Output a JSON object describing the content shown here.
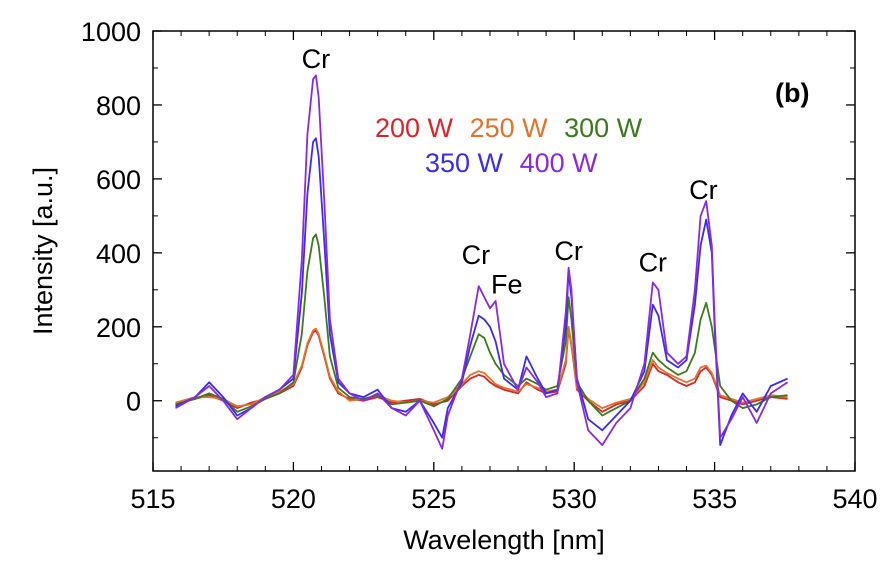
{
  "chart_data": {
    "type": "line",
    "panel_label": "(b)",
    "xlabel": "Wavelength [nm]",
    "ylabel": "Intensity [a.u.]",
    "xlim": [
      515,
      540
    ],
    "ylim": [
      -190,
      1000
    ],
    "xticks": [
      515,
      520,
      525,
      530,
      535,
      540
    ],
    "yticks": [
      0,
      200,
      400,
      600,
      800,
      1000
    ],
    "grid": false,
    "legend_lines": [
      [
        {
          "text": "200 W",
          "color": "#d9262b"
        },
        {
          "text": "250 W",
          "color": "#e0742a"
        },
        {
          "text": "300 W",
          "color": "#3c7a1e"
        }
      ],
      [
        {
          "text": "350 W",
          "color": "#3a2cf0"
        },
        {
          "text": "400 W",
          "color": "#8a2ae0"
        }
      ]
    ],
    "annotations": [
      {
        "text": "Cr",
        "x": 520.8,
        "y": 900
      },
      {
        "text": "Cr",
        "x": 526.5,
        "y": 370
      },
      {
        "text": "Fe",
        "x": 527.6,
        "y": 290
      },
      {
        "text": "Cr",
        "x": 529.8,
        "y": 380
      },
      {
        "text": "Cr",
        "x": 532.8,
        "y": 350
      },
      {
        "text": "Cr",
        "x": 534.6,
        "y": 545
      }
    ],
    "series": [
      {
        "name": "200 W",
        "color": "#d9262b",
        "x": [
          515.8,
          516.5,
          517.0,
          517.5,
          518.0,
          518.5,
          519.0,
          519.5,
          520.0,
          520.3,
          520.5,
          520.7,
          520.8,
          520.9,
          521.1,
          521.3,
          521.6,
          522.0,
          522.5,
          523.0,
          523.5,
          524.0,
          524.5,
          525.0,
          525.5,
          526.0,
          526.3,
          526.6,
          526.8,
          527.0,
          527.2,
          527.5,
          528.0,
          528.3,
          528.7,
          529.0,
          529.4,
          529.7,
          529.8,
          529.9,
          530.1,
          530.5,
          531.0,
          531.5,
          532.0,
          532.5,
          532.8,
          533.0,
          533.3,
          533.7,
          534.0,
          534.3,
          534.5,
          534.7,
          534.9,
          535.2,
          535.6,
          536.0,
          536.5,
          537.0,
          537.6
        ],
        "y": [
          -10,
          5,
          15,
          0,
          -20,
          -5,
          5,
          20,
          40,
          90,
          150,
          185,
          190,
          175,
          120,
          60,
          20,
          5,
          0,
          10,
          -5,
          0,
          5,
          -10,
          0,
          40,
          60,
          70,
          65,
          50,
          40,
          30,
          20,
          50,
          30,
          20,
          25,
          100,
          195,
          150,
          30,
          0,
          -30,
          -10,
          0,
          40,
          100,
          80,
          70,
          50,
          40,
          50,
          80,
          90,
          70,
          10,
          0,
          -10,
          0,
          10,
          5
        ]
      },
      {
        "name": "250 W",
        "color": "#e0742a",
        "x": [
          515.8,
          516.5,
          517.0,
          517.5,
          518.0,
          518.5,
          519.0,
          519.5,
          520.0,
          520.3,
          520.5,
          520.7,
          520.8,
          520.9,
          521.1,
          521.3,
          521.6,
          522.0,
          522.5,
          523.0,
          523.5,
          524.0,
          524.5,
          525.0,
          525.5,
          526.0,
          526.3,
          526.6,
          526.8,
          527.0,
          527.2,
          527.5,
          528.0,
          528.3,
          528.7,
          529.0,
          529.4,
          529.7,
          529.8,
          529.9,
          530.1,
          530.5,
          531.0,
          531.5,
          532.0,
          532.5,
          532.8,
          533.0,
          533.3,
          533.7,
          534.0,
          534.3,
          534.5,
          534.7,
          534.9,
          535.2,
          535.6,
          536.0,
          536.5,
          537.0,
          537.6
        ],
        "y": [
          -5,
          10,
          10,
          5,
          -15,
          -10,
          10,
          25,
          45,
          95,
          155,
          190,
          195,
          180,
          125,
          65,
          25,
          0,
          5,
          15,
          0,
          -5,
          0,
          -5,
          10,
          45,
          70,
          80,
          75,
          60,
          45,
          35,
          25,
          45,
          35,
          25,
          30,
          110,
          200,
          155,
          35,
          5,
          -20,
          -5,
          5,
          50,
          110,
          90,
          75,
          60,
          50,
          60,
          90,
          95,
          75,
          15,
          5,
          -5,
          5,
          15,
          10
        ]
      },
      {
        "name": "300 W",
        "color": "#3c7a1e",
        "x": [
          515.8,
          516.5,
          517.0,
          517.5,
          518.0,
          518.5,
          519.0,
          519.5,
          520.0,
          520.3,
          520.5,
          520.7,
          520.8,
          520.9,
          521.1,
          521.3,
          521.6,
          522.0,
          522.5,
          523.0,
          523.5,
          524.0,
          524.5,
          525.0,
          525.5,
          526.0,
          526.3,
          526.6,
          526.8,
          527.0,
          527.2,
          527.5,
          528.0,
          528.3,
          528.7,
          529.0,
          529.4,
          529.7,
          529.8,
          529.9,
          530.1,
          530.5,
          531.0,
          531.5,
          532.0,
          532.5,
          532.8,
          533.0,
          533.3,
          533.7,
          534.0,
          534.3,
          534.5,
          534.7,
          534.9,
          535.2,
          535.6,
          536.0,
          536.5,
          537.0,
          537.6
        ],
        "y": [
          -10,
          5,
          20,
          5,
          -30,
          -15,
          5,
          20,
          50,
          180,
          350,
          440,
          450,
          420,
          280,
          120,
          35,
          10,
          5,
          15,
          -10,
          -5,
          0,
          -15,
          5,
          60,
          120,
          180,
          170,
          130,
          100,
          70,
          40,
          60,
          45,
          30,
          40,
          160,
          280,
          220,
          50,
          0,
          -40,
          -20,
          0,
          60,
          130,
          110,
          90,
          70,
          80,
          130,
          220,
          265,
          200,
          40,
          0,
          -20,
          -10,
          10,
          15
        ]
      },
      {
        "name": "350 W",
        "color": "#3a2cf0",
        "x": [
          515.8,
          516.5,
          517.0,
          517.5,
          518.0,
          518.5,
          519.0,
          519.5,
          520.0,
          520.3,
          520.5,
          520.7,
          520.8,
          520.9,
          521.1,
          521.3,
          521.6,
          522.0,
          522.5,
          523.0,
          523.5,
          524.0,
          524.5,
          525.0,
          525.3,
          525.5,
          526.0,
          526.3,
          526.6,
          526.8,
          527.0,
          527.2,
          527.5,
          528.0,
          528.3,
          528.7,
          529.0,
          529.4,
          529.7,
          529.8,
          529.9,
          530.1,
          530.5,
          531.0,
          531.5,
          532.0,
          532.5,
          532.8,
          533.0,
          533.3,
          533.7,
          534.0,
          534.3,
          534.5,
          534.7,
          534.9,
          535.0,
          535.2,
          535.6,
          536.0,
          536.5,
          537.0,
          537.6
        ],
        "y": [
          -15,
          10,
          50,
          10,
          -40,
          -20,
          10,
          30,
          60,
          290,
          560,
          700,
          710,
          660,
          430,
          180,
          50,
          20,
          10,
          30,
          -20,
          -30,
          0,
          -60,
          -100,
          -20,
          50,
          150,
          230,
          220,
          200,
          160,
          60,
          30,
          120,
          60,
          20,
          30,
          200,
          350,
          280,
          60,
          -50,
          -80,
          -40,
          0,
          80,
          260,
          230,
          110,
          90,
          110,
          260,
          420,
          490,
          400,
          200,
          -120,
          -40,
          20,
          -30,
          40,
          60
        ]
      },
      {
        "name": "400 W",
        "color": "#8a2ae0",
        "x": [
          515.8,
          516.5,
          517.0,
          517.5,
          518.0,
          518.5,
          519.0,
          519.5,
          520.0,
          520.3,
          520.5,
          520.7,
          520.8,
          520.9,
          521.1,
          521.3,
          521.6,
          522.0,
          522.5,
          523.0,
          523.5,
          524.0,
          524.5,
          525.0,
          525.3,
          525.5,
          526.0,
          526.3,
          526.6,
          526.8,
          527.0,
          527.2,
          527.5,
          528.0,
          528.3,
          528.7,
          529.0,
          529.4,
          529.7,
          529.8,
          529.9,
          530.1,
          530.5,
          531.0,
          531.5,
          532.0,
          532.5,
          532.8,
          533.0,
          533.3,
          533.7,
          534.0,
          534.3,
          534.5,
          534.7,
          534.9,
          535.0,
          535.2,
          535.6,
          536.0,
          536.5,
          537.0,
          537.6
        ],
        "y": [
          -20,
          10,
          40,
          0,
          -50,
          -20,
          10,
          30,
          70,
          380,
          720,
          870,
          880,
          820,
          540,
          220,
          60,
          20,
          0,
          20,
          -20,
          -40,
          0,
          -80,
          -130,
          -40,
          60,
          180,
          310,
          280,
          250,
          270,
          100,
          30,
          90,
          50,
          10,
          20,
          240,
          360,
          300,
          50,
          -80,
          -120,
          -60,
          -20,
          100,
          320,
          300,
          130,
          100,
          120,
          300,
          500,
          540,
          420,
          220,
          -100,
          -50,
          10,
          -60,
          20,
          50
        ]
      }
    ]
  }
}
